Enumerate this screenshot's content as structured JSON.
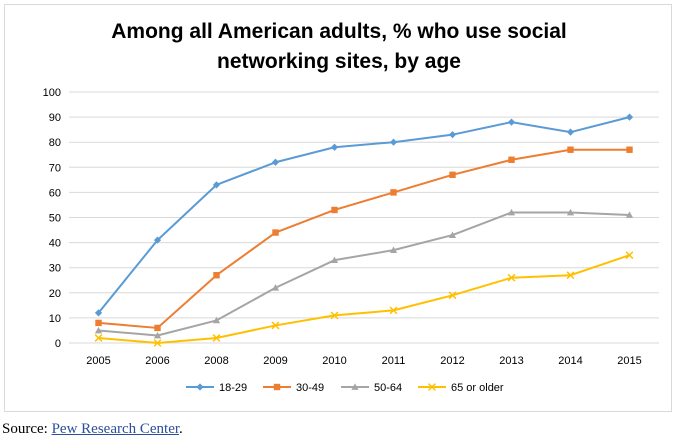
{
  "chart_data": {
    "type": "line",
    "title_lines": [
      "Among all American adults, % who use social",
      "networking sites, by age"
    ],
    "categories": [
      "2005",
      "2006",
      "2008",
      "2009",
      "2010",
      "2011",
      "2012",
      "2013",
      "2014",
      "2015"
    ],
    "y_ticks": [
      "0",
      "10",
      "20",
      "30",
      "40",
      "50",
      "60",
      "70",
      "80",
      "90",
      "100"
    ],
    "ylim": [
      0,
      100
    ],
    "grid": true,
    "legend_position": "bottom",
    "series": [
      {
        "name": "18-29",
        "color": "#5b9bd5",
        "marker": "diamond",
        "values": [
          12,
          41,
          63,
          72,
          78,
          80,
          83,
          88,
          84,
          90
        ]
      },
      {
        "name": "30-49",
        "color": "#ed7d31",
        "marker": "square",
        "values": [
          8,
          6,
          27,
          44,
          53,
          60,
          67,
          73,
          77,
          77
        ]
      },
      {
        "name": "50-64",
        "color": "#a5a5a5",
        "marker": "triangle",
        "values": [
          5,
          3,
          9,
          22,
          33,
          37,
          43,
          52,
          52,
          51
        ]
      },
      {
        "name": "65 or older",
        "color": "#ffc000",
        "marker": "x",
        "values": [
          2,
          0,
          2,
          7,
          11,
          13,
          19,
          26,
          27,
          35
        ]
      }
    ]
  },
  "source": {
    "prefix": "Source: ",
    "link_text": "Pew Research Center",
    "suffix": "."
  }
}
